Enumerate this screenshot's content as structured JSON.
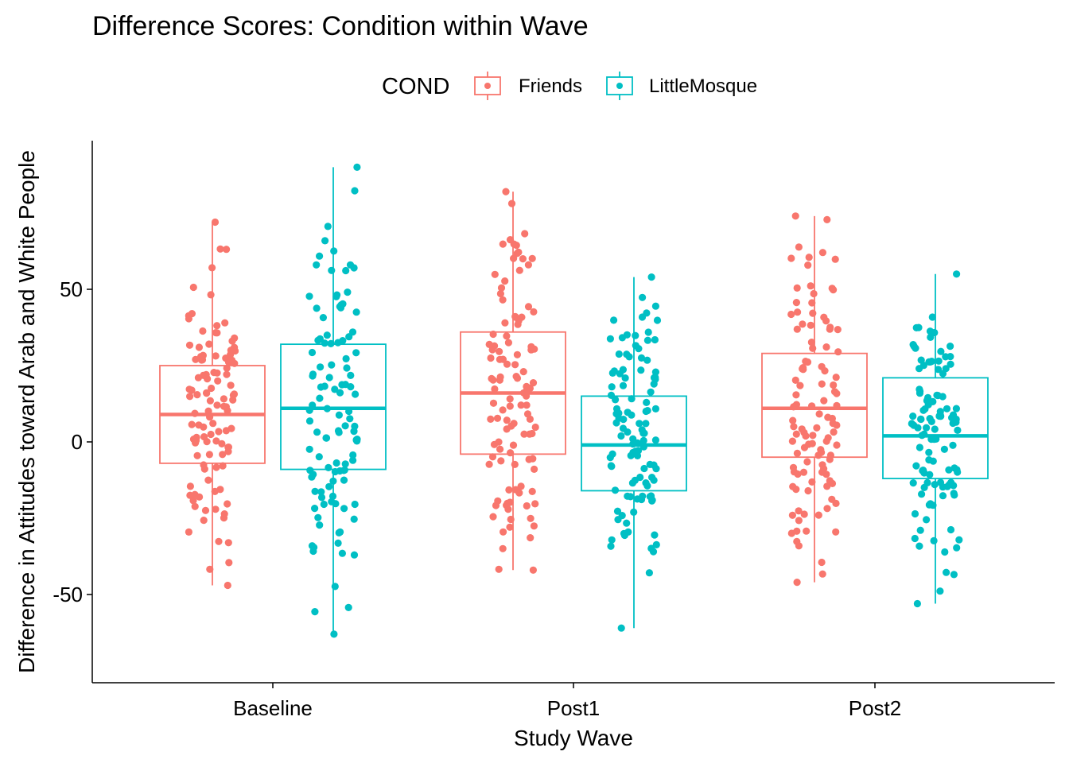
{
  "chart_data": {
    "type": "boxplot",
    "title": "Difference Scores: Condition within Wave",
    "xlabel": "Study Wave",
    "ylabel": "Difference in Attitudes toward Arab and White People",
    "categories": [
      "Baseline",
      "Post1",
      "Post2"
    ],
    "ylim": [
      -77,
      98
    ],
    "yticks": [
      -50,
      0,
      50
    ],
    "ytick_labels": [
      "-50",
      "0",
      "50"
    ],
    "grid": false,
    "legend": {
      "title": "COND",
      "position": "top",
      "entries": [
        "Friends",
        "LittleMosque"
      ]
    },
    "colors": {
      "Friends": "#F8766D",
      "LittleMosque": "#00BFC4"
    },
    "series": [
      {
        "name": "Friends",
        "boxes": [
          {
            "category": "Baseline",
            "whisker_low": -47,
            "q1": -7,
            "median": 9,
            "q3": 25,
            "whisker_high": 72
          },
          {
            "category": "Post1",
            "whisker_low": -42,
            "q1": -4,
            "median": 16,
            "q3": 36,
            "whisker_high": 82
          },
          {
            "category": "Post2",
            "whisker_low": -46,
            "q1": -5,
            "median": 11,
            "q3": 29,
            "whisker_high": 74
          }
        ]
      },
      {
        "name": "LittleMosque",
        "boxes": [
          {
            "category": "Baseline",
            "whisker_low": -63,
            "q1": -9,
            "median": 11,
            "q3": 32,
            "whisker_high": 90
          },
          {
            "category": "Post1",
            "whisker_low": -61,
            "q1": -16,
            "median": -1,
            "q3": 15,
            "whisker_high": 54
          },
          {
            "category": "Post2",
            "whisker_low": -53,
            "q1": -12,
            "median": 2,
            "q3": 21,
            "whisker_high": 55
          }
        ]
      }
    ]
  }
}
